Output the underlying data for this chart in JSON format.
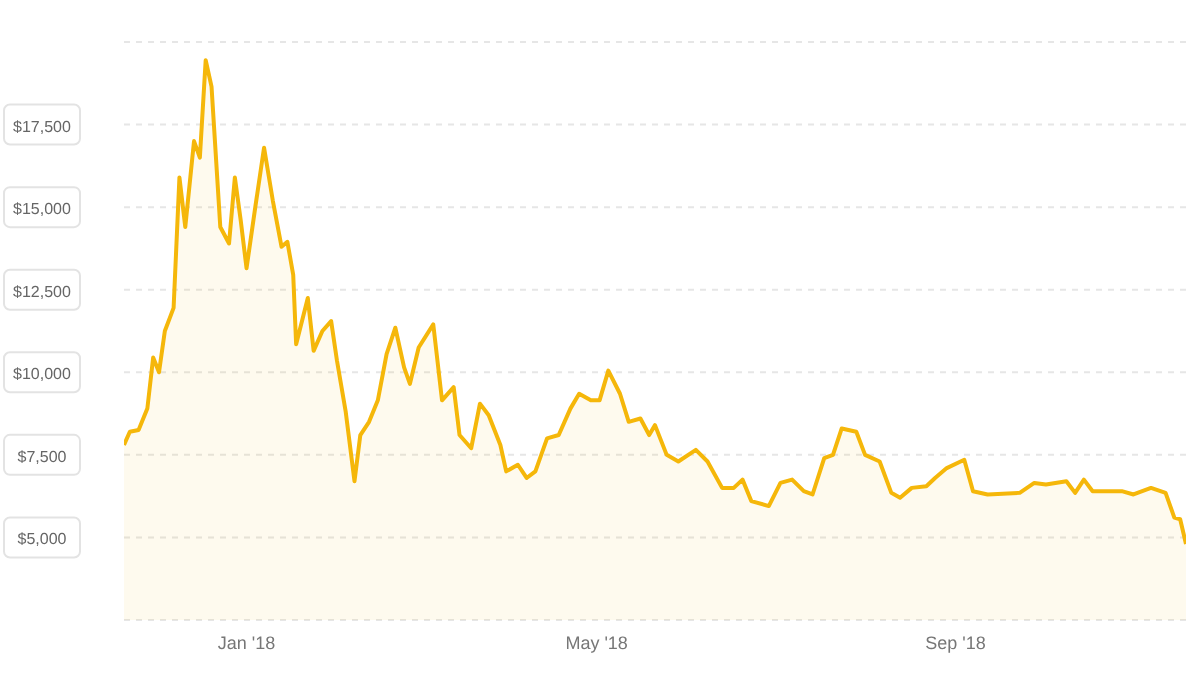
{
  "chart_data": {
    "type": "area",
    "x": [
      "2017-11-20",
      "2017-11-22",
      "2017-11-25",
      "2017-11-28",
      "2017-11-30",
      "2017-12-02",
      "2017-12-04",
      "2017-12-07",
      "2017-12-09",
      "2017-12-11",
      "2017-12-14",
      "2017-12-16",
      "2017-12-18",
      "2017-12-20",
      "2017-12-23",
      "2017-12-26",
      "2017-12-28",
      "2017-12-30",
      "2018-01-01",
      "2018-01-04",
      "2018-01-07",
      "2018-01-10",
      "2018-01-13",
      "2018-01-15",
      "2018-01-17",
      "2018-01-18",
      "2018-01-22",
      "2018-01-24",
      "2018-01-27",
      "2018-01-30",
      "2018-02-01",
      "2018-02-04",
      "2018-02-07",
      "2018-02-09",
      "2018-02-12",
      "2018-02-15",
      "2018-02-18",
      "2018-02-21",
      "2018-02-24",
      "2018-02-26",
      "2018-03-01",
      "2018-03-06",
      "2018-03-09",
      "2018-03-13",
      "2018-03-15",
      "2018-03-19",
      "2018-03-22",
      "2018-03-25",
      "2018-03-29",
      "2018-03-31",
      "2018-04-04",
      "2018-04-07",
      "2018-04-10",
      "2018-04-14",
      "2018-04-18",
      "2018-04-22",
      "2018-04-25",
      "2018-04-29",
      "2018-05-02",
      "2018-05-05",
      "2018-05-09",
      "2018-05-12",
      "2018-05-16",
      "2018-05-19",
      "2018-05-21",
      "2018-05-25",
      "2018-05-29",
      "2018-06-04",
      "2018-06-08",
      "2018-06-13",
      "2018-06-17",
      "2018-06-20",
      "2018-06-23",
      "2018-06-29",
      "2018-07-03",
      "2018-07-07",
      "2018-07-11",
      "2018-07-14",
      "2018-07-18",
      "2018-07-21",
      "2018-07-24",
      "2018-07-29",
      "2018-08-01",
      "2018-08-06",
      "2018-08-10",
      "2018-08-13",
      "2018-08-17",
      "2018-08-22",
      "2018-08-25",
      "2018-08-29",
      "2018-09-04",
      "2018-09-07",
      "2018-09-12",
      "2018-09-23",
      "2018-09-28",
      "2018-10-02",
      "2018-10-09",
      "2018-10-12",
      "2018-10-15",
      "2018-10-18",
      "2018-10-28",
      "2018-11-01",
      "2018-11-07",
      "2018-11-12",
      "2018-11-15",
      "2018-11-17",
      "2018-11-19"
    ],
    "series": [
      {
        "color": "#f5b70a",
        "values": [
          7800,
          8200,
          8250,
          8900,
          10450,
          10000,
          11250,
          11950,
          15900,
          14400,
          17000,
          16500,
          19450,
          18650,
          14400,
          13900,
          15900,
          14600,
          13150,
          15000,
          16800,
          15200,
          13800,
          13950,
          12950,
          10850,
          12250,
          10650,
          11250,
          11550,
          10350,
          8800,
          6700,
          8100,
          8500,
          9150,
          10550,
          11350,
          10150,
          9650,
          10750,
          11450,
          9150,
          9550,
          8100,
          7700,
          9050,
          8700,
          7800,
          7000,
          7200,
          6800,
          7000,
          8000,
          8100,
          8900,
          9350,
          9150,
          9150,
          10050,
          9350,
          8500,
          8600,
          8100,
          8400,
          7500,
          7300,
          7650,
          7300,
          6500,
          6500,
          6750,
          6100,
          5950,
          6650,
          6750,
          6400,
          6300,
          7400,
          7500,
          8300,
          8200,
          7500,
          7300,
          6350,
          6200,
          6500,
          6550,
          6800,
          7100,
          7350,
          6400,
          6300,
          6350,
          6650,
          6600,
          6700,
          6350,
          6750,
          6400,
          6400,
          6300,
          6500,
          6350,
          5600,
          5550,
          4800
        ]
      }
    ],
    "xlim": [
      "2017-11-20",
      "2018-11-19"
    ],
    "xticks": [
      {
        "value": "2018-01-01",
        "label": "Jan '18"
      },
      {
        "value": "2018-05-01",
        "label": "May '18"
      },
      {
        "value": "2018-09-01",
        "label": "Sep '18"
      }
    ],
    "ylim": [
      2500,
      20000
    ],
    "yticks": [
      {
        "value": 2500,
        "label": null
      },
      {
        "value": 5000,
        "label": "$5,000"
      },
      {
        "value": 7500,
        "label": "$7,500"
      },
      {
        "value": 10000,
        "label": "$10,000"
      },
      {
        "value": 12500,
        "label": "$12,500"
      },
      {
        "value": 15000,
        "label": "$15,000"
      },
      {
        "value": 17500,
        "label": "$17,500"
      },
      {
        "value": 20000,
        "label": null
      }
    ],
    "grid": "y",
    "legend": false,
    "marker": "none",
    "line_style": "solid"
  }
}
